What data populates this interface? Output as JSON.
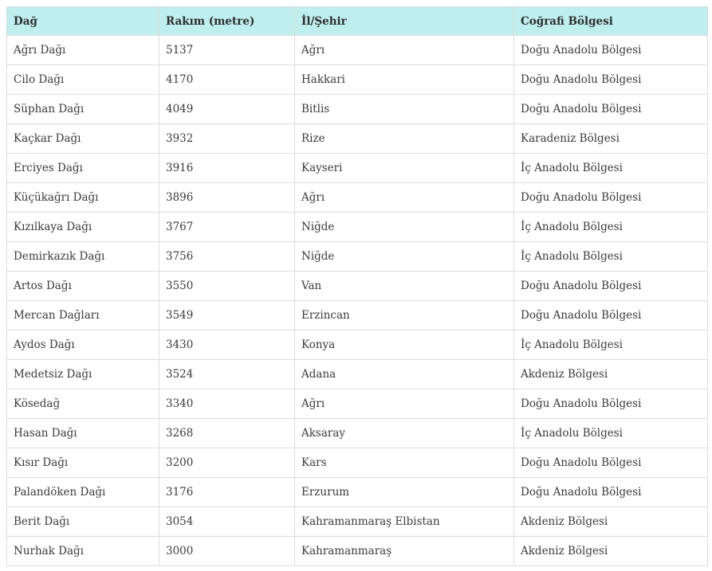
{
  "table": {
    "headers": [
      "Dağ",
      "Rakım (metre)",
      "İl/Şehir",
      "Coğrafi Bölgesi"
    ],
    "rows": [
      [
        "Ağrı Dağı",
        "5137",
        "Ağrı",
        "Doğu Anadolu Bölgesi"
      ],
      [
        "Cilo Dağı",
        "4170",
        "Hakkari",
        "Doğu Anadolu Bölgesi"
      ],
      [
        "Süphan Dağı",
        "4049",
        "Bitlis",
        "Doğu Anadolu Bölgesi"
      ],
      [
        "Kaçkar Dağı",
        "3932",
        "Rize",
        "Karadeniz Bölgesi"
      ],
      [
        "Erciyes Dağı",
        "3916",
        "Kayseri",
        "İç Anadolu Bölgesi"
      ],
      [
        "Küçükağrı Dağı",
        "3896",
        "Ağrı",
        "Doğu Anadolu Bölgesi"
      ],
      [
        "Kızılkaya Dağı",
        "3767",
        "Niğde",
        "İç Anadolu Bölgesi"
      ],
      [
        "Demirkazık Dağı",
        "3756",
        "Niğde",
        "İç Anadolu Bölgesi"
      ],
      [
        "Artos Dağı",
        "3550",
        "Van",
        "Doğu Anadolu Bölgesi"
      ],
      [
        "Mercan Dağları",
        "3549",
        "Erzincan",
        "Doğu Anadolu Bölgesi"
      ],
      [
        "Aydos Dağı",
        "3430",
        "Konya",
        "İç Anadolu Bölgesi"
      ],
      [
        "Medetsiz Dağı",
        "3524",
        "Adana",
        "Akdeniz Bölgesi"
      ],
      [
        "Kösedağ",
        "3340",
        "Ağrı",
        "Doğu Anadolu Bölgesi"
      ],
      [
        "Hasan Dağı",
        "3268",
        "Aksaray",
        "İç Anadolu Bölgesi"
      ],
      [
        "Kısır Dağı",
        "3200",
        "Kars",
        "Doğu Anadolu Bölgesi"
      ],
      [
        "Palandöken Dağı",
        "3176",
        "Erzurum",
        "Doğu Anadolu Bölgesi"
      ],
      [
        "Berit Dağı",
        "3054",
        "Kahramanmaraş Elbistan",
        "Akdeniz Bölgesi"
      ],
      [
        "Nurhak Dağı",
        "3000",
        "Kahramanmaraş",
        "Akdeniz Bölgesi"
      ]
    ]
  },
  "colors": {
    "header_bg": "#bfeeee",
    "border": "#dcdcdc"
  }
}
